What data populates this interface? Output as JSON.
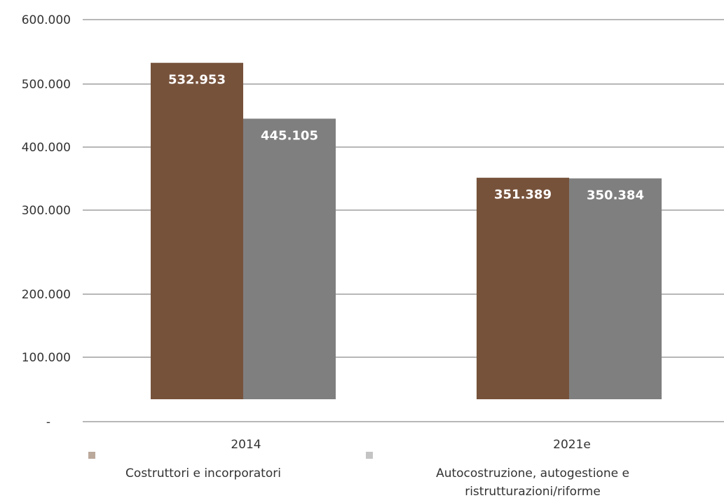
{
  "chart_data": {
    "type": "bar",
    "title": "",
    "xlabel": "",
    "ylabel": "",
    "categories": [
      "2014",
      "2021e"
    ],
    "series": [
      {
        "name": "Costruttori e incorporatori",
        "values": [
          532953,
          351389
        ],
        "labels": [
          "532.953",
          "351.389"
        ],
        "color": "#77523b",
        "legend_color": "#bba99c"
      },
      {
        "name": "Autocostruzione, autogestione e ristrutturazioni/riforme",
        "values": [
          445105,
          350384
        ],
        "labels": [
          "445.105",
          "350.384"
        ],
        "color": "#7f7f7f",
        "legend_color": "#c4c4c4"
      }
    ],
    "yticks": [
      {
        "value": 0,
        "label": "-"
      },
      {
        "value": 100000,
        "label": "100.000"
      },
      {
        "value": 200000,
        "label": "200.000"
      },
      {
        "value": 300000,
        "label": "300.000"
      },
      {
        "value": 400000,
        "label": "400.000"
      },
      {
        "value": 500000,
        "label": "500.000"
      },
      {
        "value": 600000,
        "label": "600.000"
      }
    ],
    "ylim": [
      0,
      600000
    ],
    "grid": true,
    "legend": {
      "placement": "bottom",
      "entries": [
        {
          "lines": [
            "Costruttori e incorporatori"
          ]
        },
        {
          "lines": [
            "Autocostruzione, autogestione e",
            "ristrutturazioni/riforme"
          ]
        }
      ]
    }
  }
}
